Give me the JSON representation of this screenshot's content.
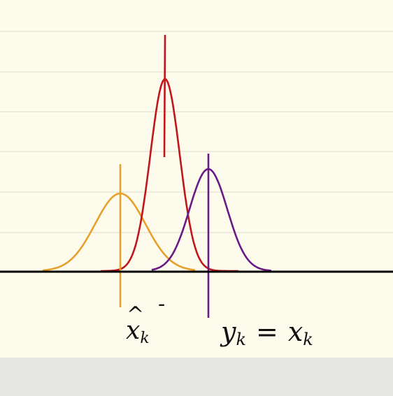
{
  "prediction_label": {
    "base": "x",
    "accent": "^",
    "sub": "k",
    "sup": "-"
  },
  "measurement_label": {
    "lhs": {
      "base": "y",
      "sub": "k"
    },
    "op": "=",
    "rhs": {
      "base": "x",
      "sub": "k"
    }
  }
}
